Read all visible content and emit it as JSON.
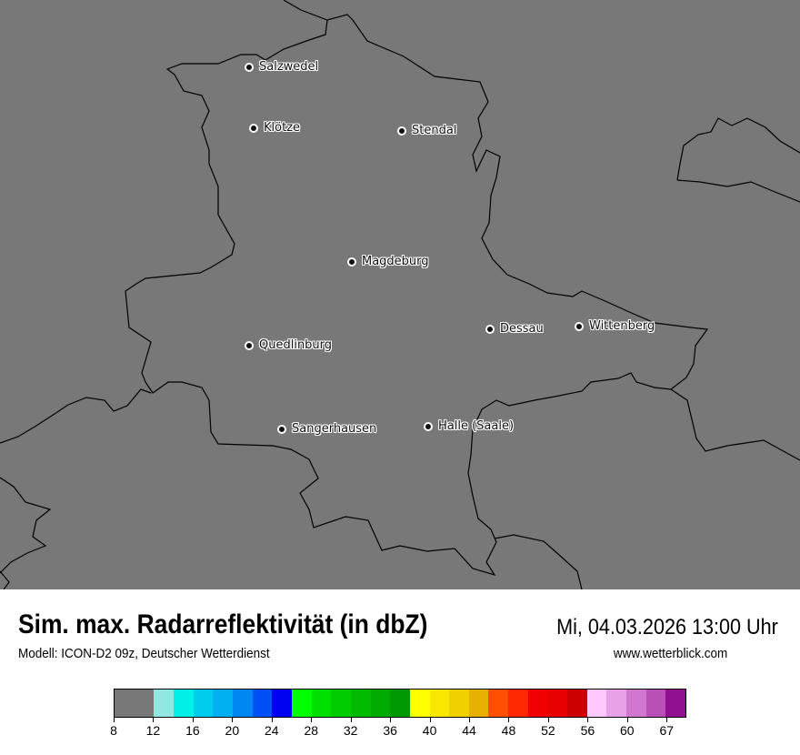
{
  "map": {
    "background_color": "#787878",
    "cities": [
      {
        "name": "Salzwedel"
      },
      {
        "name": "Klötze"
      },
      {
        "name": "Stendal"
      },
      {
        "name": "Magdeburg"
      },
      {
        "name": "Dessau"
      },
      {
        "name": "Wittenberg"
      },
      {
        "name": "Quedlinburg"
      },
      {
        "name": "Sangerhausen"
      },
      {
        "name": "Halle (Saale)"
      }
    ]
  },
  "footer": {
    "title": "Sim. max. Radarreflektivität (in dbZ)",
    "subtitle": "Modell: ICON-D2 09z, Deutscher Wetterdienst",
    "datetime": "Mi, 04.03.2026 13:00 Uhr",
    "website": "www.wetterblick.com"
  },
  "legend": {
    "tick_labels": [
      "8",
      "12",
      "16",
      "20",
      "24",
      "28",
      "32",
      "36",
      "40",
      "44",
      "48",
      "52",
      "56",
      "60",
      "67"
    ],
    "colors": [
      "#787878",
      "#90e8e0",
      "#00f0e8",
      "#00ccf0",
      "#00b0f0",
      "#0088f0",
      "#0050f8",
      "#0000f0",
      "#00ff00",
      "#00e000",
      "#00cc00",
      "#00bb00",
      "#00aa00",
      "#009800",
      "#ffff00",
      "#f8e800",
      "#f0d000",
      "#e8b000",
      "#ff5000",
      "#ff2800",
      "#f00000",
      "#e80000",
      "#cc0000",
      "#ffc8ff",
      "#e8a0e8",
      "#d078d0",
      "#b850b8",
      "#901090"
    ]
  }
}
